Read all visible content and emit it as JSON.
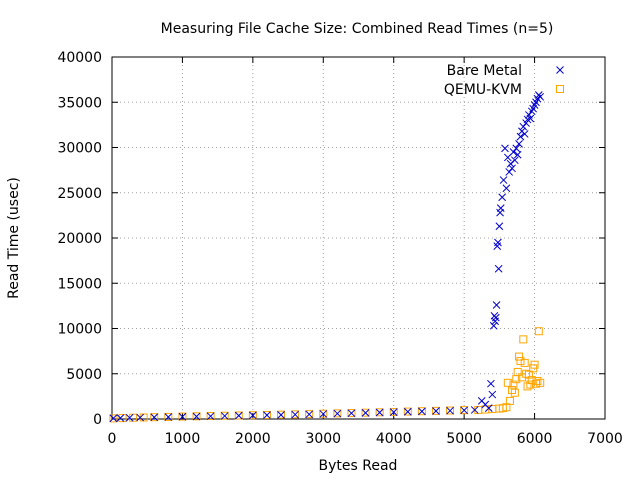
{
  "chart_data": {
    "type": "scatter",
    "title": "Measuring File Cache Size: Combined Read Times (n=5)",
    "xlabel": "Bytes Read",
    "ylabel": "Read Time (usec)",
    "xlim": [
      0,
      7000
    ],
    "ylim": [
      0,
      40000
    ],
    "xticks": [
      0,
      1000,
      2000,
      3000,
      4000,
      5000,
      6000,
      7000
    ],
    "yticks": [
      0,
      5000,
      10000,
      15000,
      20000,
      25000,
      30000,
      35000,
      40000
    ],
    "grid": true,
    "legend_position": "top-right",
    "series": [
      {
        "name": "Bare Metal",
        "marker": "x",
        "color": "#0000cc",
        "points": [
          [
            20,
            80
          ],
          [
            120,
            110
          ],
          [
            250,
            130
          ],
          [
            400,
            160
          ],
          [
            600,
            190
          ],
          [
            800,
            220
          ],
          [
            1000,
            250
          ],
          [
            1200,
            280
          ],
          [
            1400,
            310
          ],
          [
            1600,
            340
          ],
          [
            1800,
            370
          ],
          [
            2000,
            400
          ],
          [
            2200,
            430
          ],
          [
            2400,
            460
          ],
          [
            2600,
            490
          ],
          [
            2800,
            520
          ],
          [
            3000,
            560
          ],
          [
            3200,
            600
          ],
          [
            3400,
            640
          ],
          [
            3600,
            680
          ],
          [
            3800,
            720
          ],
          [
            4000,
            760
          ],
          [
            4200,
            800
          ],
          [
            4400,
            840
          ],
          [
            4600,
            880
          ],
          [
            4800,
            920
          ],
          [
            5000,
            960
          ],
          [
            5150,
            1000
          ],
          [
            5250,
            2000
          ],
          [
            5300,
            1600
          ],
          [
            5350,
            1200
          ],
          [
            5380,
            3900
          ],
          [
            5400,
            2700
          ],
          [
            5420,
            10300
          ],
          [
            5430,
            11400
          ],
          [
            5440,
            10800
          ],
          [
            5450,
            11200
          ],
          [
            5460,
            12600
          ],
          [
            5470,
            19100
          ],
          [
            5480,
            19500
          ],
          [
            5490,
            16600
          ],
          [
            5500,
            21300
          ],
          [
            5510,
            22800
          ],
          [
            5520,
            23300
          ],
          [
            5540,
            24500
          ],
          [
            5560,
            26400
          ],
          [
            5580,
            29900
          ],
          [
            5600,
            25500
          ],
          [
            5620,
            28900
          ],
          [
            5640,
            27300
          ],
          [
            5660,
            28200
          ],
          [
            5680,
            27700
          ],
          [
            5700,
            29500
          ],
          [
            5720,
            28600
          ],
          [
            5740,
            29900
          ],
          [
            5760,
            29200
          ],
          [
            5780,
            30400
          ],
          [
            5800,
            31200
          ],
          [
            5820,
            31800
          ],
          [
            5840,
            32300
          ],
          [
            5860,
            31500
          ],
          [
            5880,
            32700
          ],
          [
            5900,
            33100
          ],
          [
            5920,
            33600
          ],
          [
            5940,
            33200
          ],
          [
            5960,
            34000
          ],
          [
            5980,
            34300
          ],
          [
            6000,
            34700
          ],
          [
            6020,
            35000
          ],
          [
            6040,
            35400
          ],
          [
            6060,
            35800
          ],
          [
            6080,
            35600
          ]
        ]
      },
      {
        "name": "QEMU-KVM",
        "marker": "square",
        "color": "#ffa500",
        "points": [
          [
            20,
            70
          ],
          [
            150,
            100
          ],
          [
            300,
            140
          ],
          [
            450,
            170
          ],
          [
            600,
            200
          ],
          [
            800,
            230
          ],
          [
            1000,
            270
          ],
          [
            1200,
            300
          ],
          [
            1400,
            330
          ],
          [
            1600,
            360
          ],
          [
            1800,
            390
          ],
          [
            2000,
            420
          ],
          [
            2200,
            450
          ],
          [
            2400,
            480
          ],
          [
            2600,
            510
          ],
          [
            2800,
            540
          ],
          [
            3000,
            580
          ],
          [
            3200,
            620
          ],
          [
            3400,
            660
          ],
          [
            3600,
            700
          ],
          [
            3800,
            740
          ],
          [
            4000,
            780
          ],
          [
            4200,
            820
          ],
          [
            4400,
            860
          ],
          [
            4600,
            900
          ],
          [
            4800,
            940
          ],
          [
            5000,
            980
          ],
          [
            5200,
            1000
          ],
          [
            5300,
            1050
          ],
          [
            5400,
            1100
          ],
          [
            5500,
            1150
          ],
          [
            5550,
            1200
          ],
          [
            5600,
            1300
          ],
          [
            5620,
            4000
          ],
          [
            5650,
            2000
          ],
          [
            5680,
            3200
          ],
          [
            5700,
            3800
          ],
          [
            5720,
            2900
          ],
          [
            5740,
            4400
          ],
          [
            5760,
            5200
          ],
          [
            5780,
            6900
          ],
          [
            5800,
            6400
          ],
          [
            5820,
            4600
          ],
          [
            5840,
            8800
          ],
          [
            5860,
            6200
          ],
          [
            5880,
            5000
          ],
          [
            5900,
            3600
          ],
          [
            5920,
            4900
          ],
          [
            5940,
            3800
          ],
          [
            5960,
            4300
          ],
          [
            5980,
            5600
          ],
          [
            6000,
            6000
          ],
          [
            6020,
            3900
          ],
          [
            6040,
            4200
          ],
          [
            6060,
            9700
          ],
          [
            6080,
            4000
          ]
        ]
      }
    ]
  }
}
